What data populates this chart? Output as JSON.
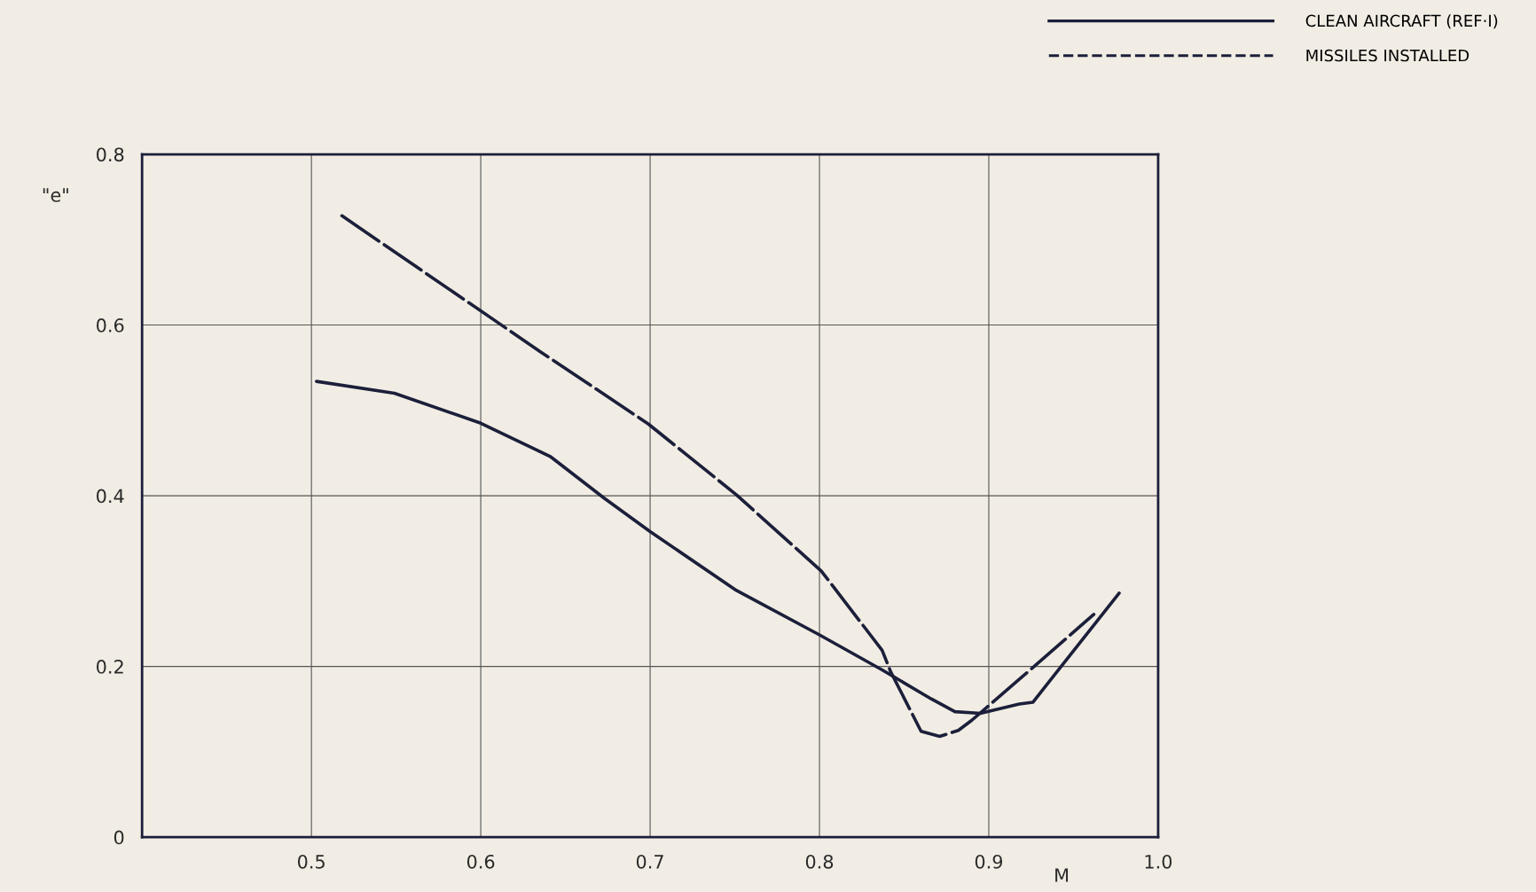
{
  "chart_data": {
    "type": "line",
    "xlabel": "M",
    "ylabel": "\"e\"",
    "xlim": [
      0.4,
      1.0
    ],
    "ylim": [
      0,
      0.8
    ],
    "xticks": [
      0.5,
      0.6,
      0.7,
      0.8,
      0.9,
      {
        "value": 1.0,
        "label": "1.0"
      }
    ],
    "yticks": [
      0,
      0.2,
      0.4,
      0.6,
      0.8
    ],
    "grid": true,
    "legend": "top right",
    "marker": "none",
    "series": [
      {
        "name": "CLEAN AIRCRAFT (REF·I)",
        "color": "#1c1f3a",
        "line_style": "solid",
        "x": [
          0.503,
          0.549,
          0.6,
          0.641,
          0.673,
          0.7,
          0.751,
          0.8,
          0.837,
          0.866,
          0.88,
          0.895,
          0.918,
          0.926,
          0.977
        ],
        "values": [
          0.534,
          0.52,
          0.485,
          0.446,
          0.397,
          0.358,
          0.289,
          0.237,
          0.196,
          0.162,
          0.147,
          0.145,
          0.156,
          0.158,
          0.286
        ]
      },
      {
        "name": "MISSILES INSTALLED",
        "color": "#1c1f3a",
        "line_style": "dashed",
        "x": [
          0.518,
          0.635,
          0.699,
          0.751,
          0.801,
          0.837,
          0.842,
          0.86,
          0.871,
          0.882,
          0.89,
          0.925,
          0.962
        ],
        "values": [
          0.728,
          0.569,
          0.484,
          0.401,
          0.312,
          0.219,
          0.194,
          0.124,
          0.118,
          0.125,
          0.137,
          0.197,
          0.261
        ]
      }
    ]
  }
}
